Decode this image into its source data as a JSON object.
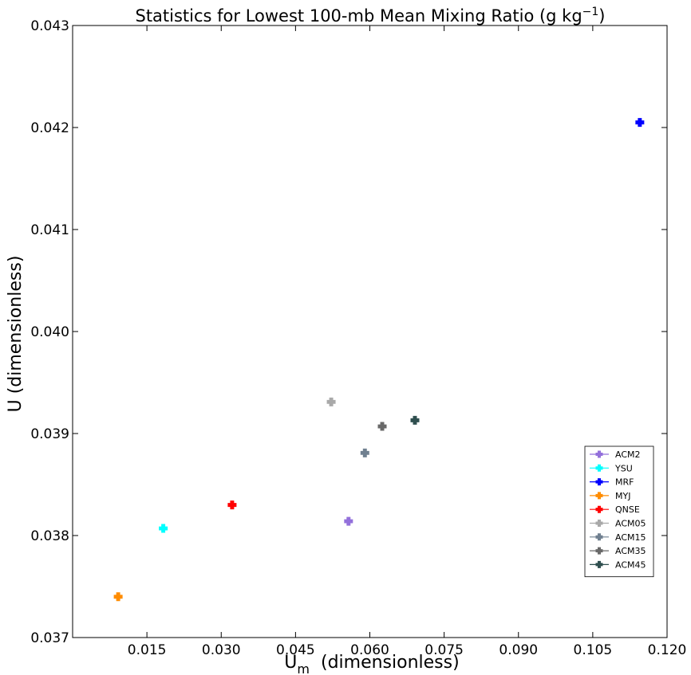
{
  "chart_data": {
    "type": "scatter",
    "title": {
      "main": "Statistics for Lowest 100-mb Mean Mixing Ratio (g kg",
      "sup": "−1",
      "end": ")"
    },
    "xlabel": {
      "main": "U",
      "sub": "m",
      "rest": "  (dimensionless)"
    },
    "ylabel": "U (dimensionless)",
    "xlim": [
      0.0,
      0.12
    ],
    "ylim": [
      0.037,
      0.043
    ],
    "x_ticks": [
      0.015,
      0.03,
      0.045,
      0.06,
      0.075,
      0.09,
      0.105,
      0.12
    ],
    "x_tick_labels": [
      "0.015",
      "0.030",
      "0.045",
      "0.060",
      "0.075",
      "0.090",
      "0.105",
      "0.120"
    ],
    "y_ticks": [
      0.037,
      0.038,
      0.039,
      0.04,
      0.041,
      0.042,
      0.043
    ],
    "y_tick_labels": [
      "0.037",
      "0.038",
      "0.039",
      "0.040",
      "0.041",
      "0.042",
      "0.043"
    ],
    "legend_position": "lower-right",
    "grid": false,
    "series": [
      {
        "name": "ACM2",
        "x": 0.0557,
        "y": 0.03814,
        "color": "#9370DB"
      },
      {
        "name": "YSU",
        "x": 0.0183,
        "y": 0.03807,
        "color": "#00FFFF"
      },
      {
        "name": "MRF",
        "x": 0.1145,
        "y": 0.04205,
        "color": "#0000FF"
      },
      {
        "name": "MYJ",
        "x": 0.0092,
        "y": 0.0374,
        "color": "#FF8C00"
      },
      {
        "name": "QNSE",
        "x": 0.0322,
        "y": 0.0383,
        "color": "#FF0000"
      },
      {
        "name": "ACM05",
        "x": 0.0522,
        "y": 0.03931,
        "color": "#A9A9A9"
      },
      {
        "name": "ACM15",
        "x": 0.059,
        "y": 0.03881,
        "color": "#708090"
      },
      {
        "name": "ACM35",
        "x": 0.0625,
        "y": 0.03907,
        "color": "#696969"
      },
      {
        "name": "ACM45",
        "x": 0.0691,
        "y": 0.03913,
        "color": "#2F4F4F"
      }
    ]
  }
}
